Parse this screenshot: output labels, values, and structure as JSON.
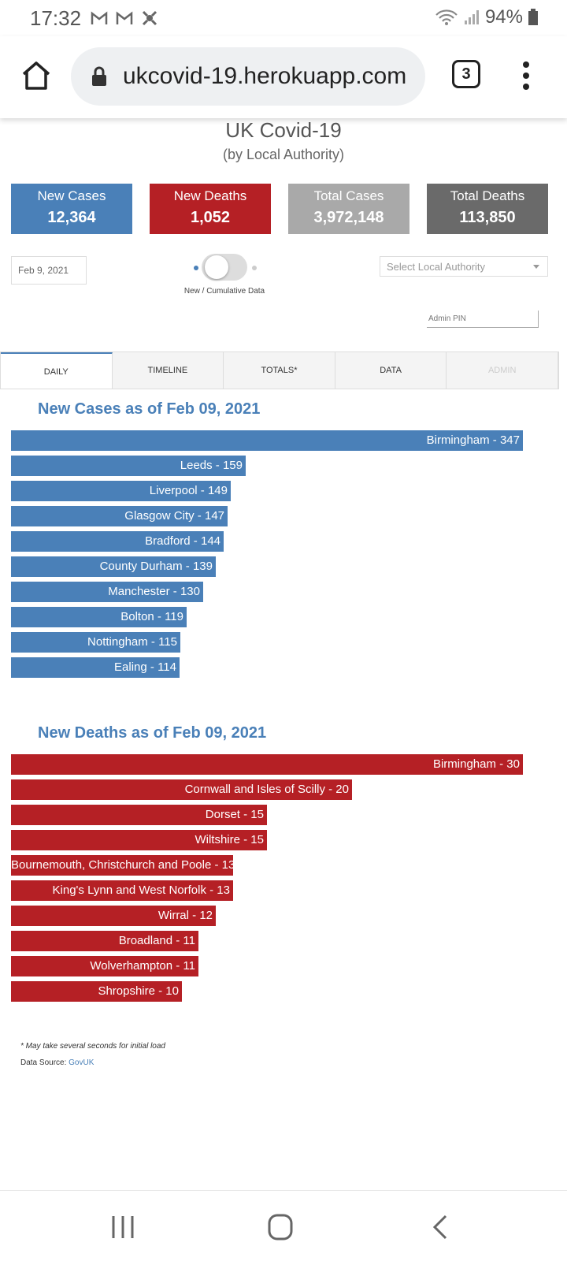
{
  "status": {
    "time": "17:32",
    "battery": "94%"
  },
  "browser": {
    "url": "ukcovid-19.herokuapp.com",
    "tab_count": "3"
  },
  "header": {
    "title": "UK Covid-19",
    "subtitle": "(by Local Authority)"
  },
  "cards": [
    {
      "label": "New Cases",
      "value": "12,364",
      "color": "#4a80b8"
    },
    {
      "label": "New Deaths",
      "value": "1,052",
      "color": "#b52025"
    },
    {
      "label": "Total Cases",
      "value": "3,972,148",
      "color": "#a9a9a9"
    },
    {
      "label": "Total Deaths",
      "value": "113,850",
      "color": "#6a6a6a"
    }
  ],
  "controls": {
    "date": "Feb 9, 2021",
    "toggle_label": "New / Cumulative Data",
    "select_placeholder": "Select Local Authority",
    "pin_placeholder": "Admin PIN"
  },
  "tabs": [
    "DAILY",
    "TIMELINE",
    "TOTALS*",
    "DATA",
    "ADMIN"
  ],
  "cases_title": "New Cases as of Feb 09, 2021",
  "deaths_title": "New Deaths as of Feb 09, 2021",
  "chart_data": [
    {
      "type": "bar",
      "title": "New Cases as of Feb 09, 2021",
      "orientation": "horizontal",
      "color": "#4a80b8",
      "categories": [
        "Birmingham",
        "Leeds",
        "Liverpool",
        "Glasgow City",
        "Bradford",
        "County Durham",
        "Manchester",
        "Bolton",
        "Nottingham",
        "Ealing"
      ],
      "values": [
        347,
        159,
        149,
        147,
        144,
        139,
        130,
        119,
        115,
        114
      ],
      "bar_labels": [
        "Birmingham - 347",
        "Leeds - 159",
        "Liverpool - 149",
        "Glasgow City - 147",
        "Bradford - 144",
        "County Durham - 139",
        "Manchester - 130",
        "Bolton - 119",
        "Nottingham - 115",
        "Ealing - 114"
      ]
    },
    {
      "type": "bar",
      "title": "New Deaths as of Feb 09, 2021",
      "orientation": "horizontal",
      "color": "#b52025",
      "categories": [
        "Birmingham",
        "Cornwall and Isles of Scilly",
        "Dorset",
        "Wiltshire",
        "Bournemouth, Christchurch and Poole",
        "King's Lynn and West Norfolk",
        "Wirral",
        "Broadland",
        "Wolverhampton",
        "Shropshire"
      ],
      "values": [
        30,
        20,
        15,
        15,
        13,
        13,
        12,
        11,
        11,
        10
      ],
      "bar_labels": [
        "Birmingham - 30",
        "Cornwall and Isles of Scilly - 20",
        "Dorset - 15",
        "Wiltshire - 15",
        "Bournemouth, Christchurch and Poole - 13",
        "King's Lynn and West Norfolk - 13",
        "Wirral - 12",
        "Broadland - 11",
        "Wolverhampton - 11",
        "Shropshire - 10"
      ]
    }
  ],
  "footer": {
    "note": "* May take several seconds for initial load",
    "source_label": "Data Source:",
    "source_link": "GovUK"
  }
}
